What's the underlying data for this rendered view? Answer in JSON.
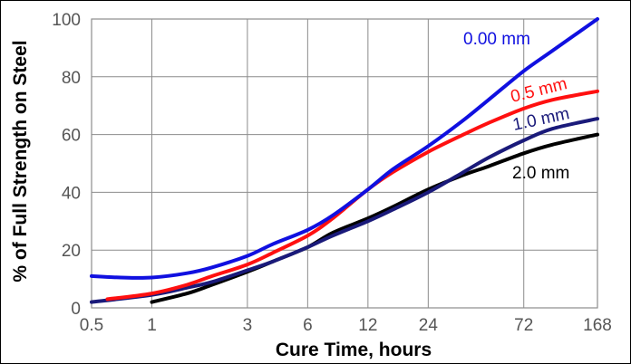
{
  "chart_data": {
    "type": "line",
    "title": "",
    "xlabel": "Cure Time, hours",
    "ylabel": "% of Full Strength on Steel",
    "x_scale": "log",
    "xlim": [
      0.5,
      168
    ],
    "ylim": [
      0,
      100
    ],
    "grid": true,
    "x_ticks": [
      0.5,
      1,
      3,
      6,
      12,
      24,
      72,
      168
    ],
    "x_tick_labels": [
      "0.5",
      "1",
      "3",
      "6",
      "12",
      "24",
      "72",
      "168"
    ],
    "y_ticks": [
      0,
      20,
      40,
      60,
      80,
      100
    ],
    "y_tick_labels": [
      "0",
      "20",
      "40",
      "60",
      "80",
      "100"
    ],
    "series": [
      {
        "name": "0.00 mm",
        "color": "#1010e0",
        "x": [
          0.5,
          0.7,
          1,
          1.5,
          2,
          3,
          4,
          6,
          8,
          12,
          16,
          24,
          36,
          48,
          72,
          100,
          168
        ],
        "y": [
          11,
          10.5,
          10.5,
          12,
          14,
          18,
          22,
          27,
          32,
          41,
          48,
          56,
          65,
          72,
          82,
          89,
          100
        ]
      },
      {
        "name": "0.5 mm",
        "color": "#ff1010",
        "x": [
          0.6,
          1,
          1.5,
          2,
          3,
          4,
          6,
          8,
          12,
          16,
          24,
          36,
          48,
          72,
          100,
          168
        ],
        "y": [
          3,
          5,
          8,
          11,
          15,
          19,
          25,
          31,
          41,
          47,
          54,
          60,
          64,
          69,
          72,
          75
        ]
      },
      {
        "name": "1.0 mm",
        "color": "#1a1a7a",
        "x": [
          0.5,
          1,
          1.5,
          2,
          3,
          4,
          6,
          8,
          12,
          16,
          24,
          36,
          48,
          72,
          100,
          168
        ],
        "y": [
          2,
          4.5,
          7,
          9,
          13,
          16,
          21,
          25,
          30,
          34,
          40,
          47,
          52,
          58,
          62,
          65.5
        ]
      },
      {
        "name": "2.0 mm",
        "color": "#000000",
        "x": [
          1,
          1.5,
          2,
          3,
          4,
          6,
          8,
          12,
          16,
          24,
          36,
          48,
          72,
          100,
          168
        ],
        "y": [
          2,
          5,
          8,
          12.5,
          16,
          21,
          26,
          31,
          35,
          41,
          46,
          49,
          53.5,
          56.5,
          60
        ]
      }
    ]
  }
}
